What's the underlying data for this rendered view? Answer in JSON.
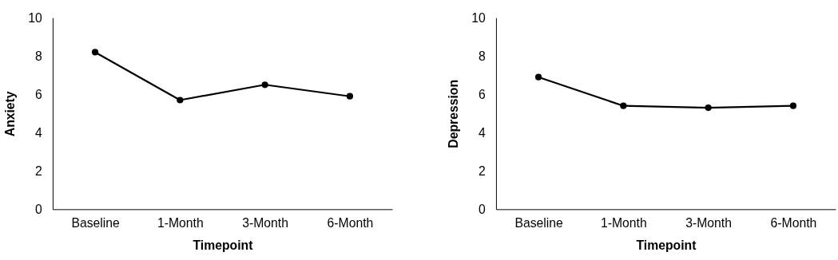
{
  "chart_data": [
    {
      "type": "line",
      "xlabel": "Timepoint",
      "ylabel": "Anxiety",
      "categories": [
        "Baseline",
        "1-Month",
        "3-Month",
        "6-Month"
      ],
      "series": [
        {
          "color": "#000000",
          "values": [
            8.2,
            5.7,
            6.5,
            5.9
          ]
        }
      ],
      "ylim": [
        0,
        10
      ],
      "yticks": [
        0,
        2,
        4,
        6,
        8,
        10
      ],
      "grid": false,
      "legend": false,
      "marker": "circle",
      "line_style": "solid"
    },
    {
      "type": "line",
      "xlabel": "Timepoint",
      "ylabel": "Depression",
      "categories": [
        "Baseline",
        "1-Month",
        "3-Month",
        "6-Month"
      ],
      "series": [
        {
          "color": "#000000",
          "values": [
            6.9,
            5.4,
            5.3,
            5.4
          ]
        }
      ],
      "ylim": [
        0,
        10
      ],
      "yticks": [
        0,
        2,
        4,
        6,
        8,
        10
      ],
      "grid": false,
      "legend": false,
      "marker": "circle",
      "line_style": "solid"
    }
  ]
}
